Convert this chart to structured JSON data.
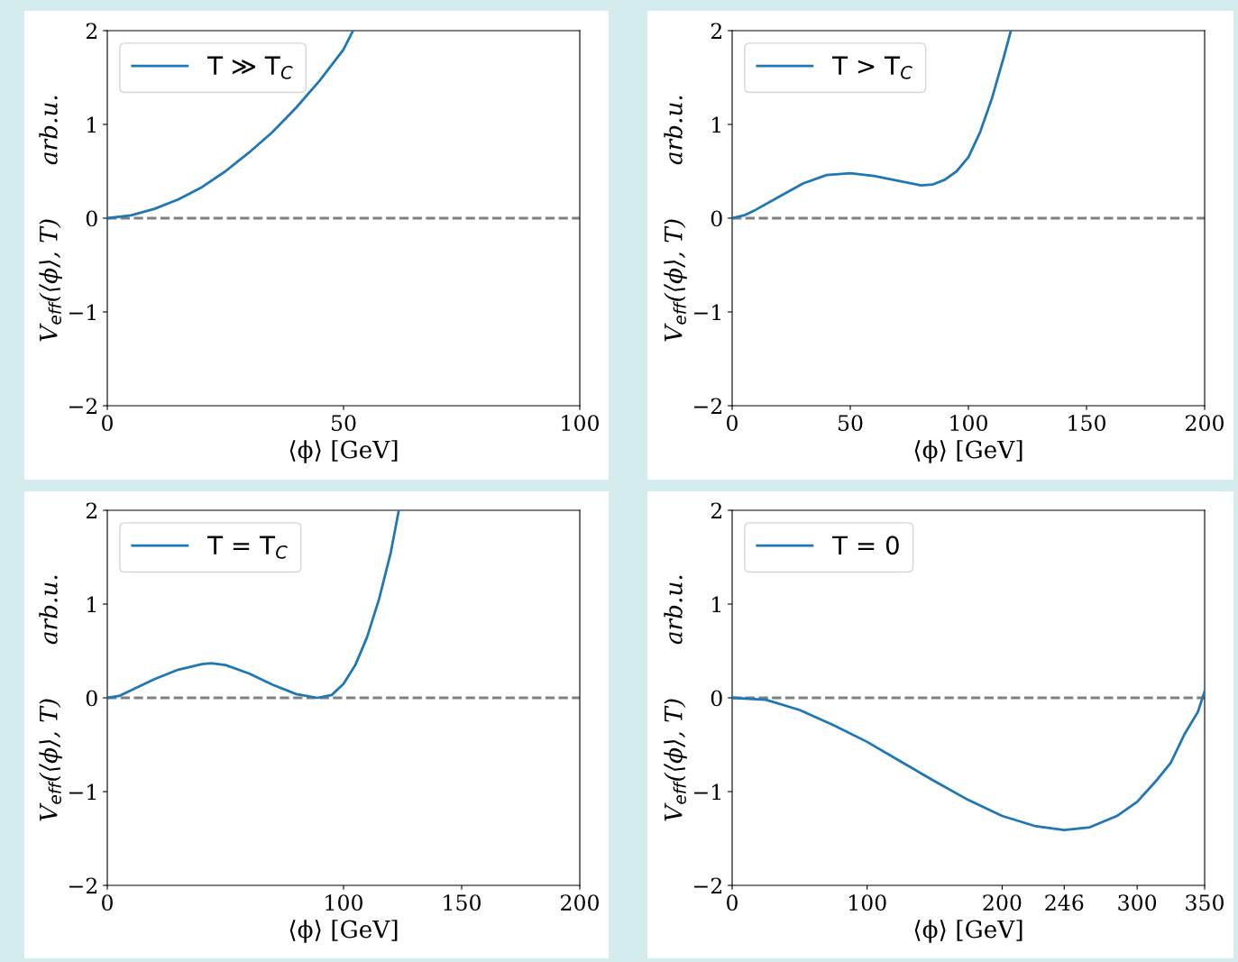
{
  "chart_data": [
    {
      "type": "line",
      "xlabel": "⟨ϕ⟩ [GeV]",
      "ylabel": "V$_{eff}$(⟨ϕ⟩, T)       arb.u.",
      "xlim": [
        0,
        100
      ],
      "ylim": [
        -2,
        2
      ],
      "xticks": [
        0,
        50,
        100
      ],
      "yticks": [
        -2,
        -1,
        0,
        1,
        2
      ],
      "grid": false,
      "legend": "top left",
      "marker": "none",
      "line_style": "solid",
      "series": [
        {
          "name": "T ≫ T$_{C}$",
          "color": "#1f77b4",
          "x": [
            0,
            5,
            10,
            15,
            20,
            25,
            30,
            35,
            40,
            45,
            50,
            52
          ],
          "values": [
            0,
            0.03,
            0.1,
            0.2,
            0.33,
            0.5,
            0.7,
            0.92,
            1.18,
            1.47,
            1.8,
            2.0
          ]
        }
      ],
      "ref_lines": [
        {
          "axis": "y",
          "value": 0,
          "color": "#808080",
          "line_style": "dashed"
        }
      ]
    },
    {
      "type": "line",
      "xlabel": "⟨ϕ⟩ [GeV]",
      "ylabel": "V$_{eff}$(⟨ϕ⟩, T)       arb.u.",
      "xlim": [
        0,
        200
      ],
      "ylim": [
        -2,
        2
      ],
      "xticks": [
        0,
        50,
        100,
        150,
        200
      ],
      "yticks": [
        -2,
        -1,
        0,
        1,
        2
      ],
      "grid": false,
      "legend": "top left",
      "marker": "none",
      "line_style": "solid",
      "series": [
        {
          "name": "T > T$_{C}$",
          "color": "#1f77b4",
          "x": [
            0,
            5,
            10,
            20,
            30,
            40,
            50,
            60,
            70,
            80,
            85,
            90,
            95,
            100,
            105,
            110,
            115,
            118
          ],
          "values": [
            0,
            0.03,
            0.09,
            0.23,
            0.37,
            0.46,
            0.48,
            0.45,
            0.4,
            0.35,
            0.36,
            0.41,
            0.5,
            0.65,
            0.92,
            1.28,
            1.72,
            2.0
          ]
        }
      ],
      "ref_lines": [
        {
          "axis": "y",
          "value": 0,
          "color": "#808080",
          "line_style": "dashed"
        }
      ]
    },
    {
      "type": "line",
      "xlabel": "⟨ϕ⟩ [GeV]",
      "ylabel": "V$_{eff}$(⟨ϕ⟩, T)       arb.u.",
      "xlim": [
        0,
        200
      ],
      "ylim": [
        -2,
        2
      ],
      "xticks": [
        0,
        100,
        150,
        200
      ],
      "yticks": [
        -2,
        -1,
        0,
        1,
        2
      ],
      "grid": false,
      "legend": "top left",
      "marker": "none",
      "line_style": "solid",
      "series": [
        {
          "name": "T = T$_{C}$",
          "color": "#1f77b4",
          "x": [
            0,
            5,
            10,
            20,
            30,
            40,
            44,
            50,
            60,
            70,
            80,
            89,
            95,
            100,
            105,
            110,
            115,
            120,
            123.4
          ],
          "values": [
            0,
            0.02,
            0.08,
            0.2,
            0.3,
            0.36,
            0.37,
            0.35,
            0.26,
            0.14,
            0.04,
            0,
            0.03,
            0.15,
            0.35,
            0.65,
            1.05,
            1.55,
            2.0
          ]
        }
      ],
      "ref_lines": [
        {
          "axis": "y",
          "value": 0,
          "color": "#808080",
          "line_style": "dashed"
        }
      ]
    },
    {
      "type": "line",
      "xlabel": "⟨ϕ⟩ [GeV]",
      "ylabel": "V$_{eff}$(⟨ϕ⟩, T)       arb.u.",
      "xlim": [
        0,
        350
      ],
      "ylim": [
        -2,
        2
      ],
      "xticks": [
        0,
        100,
        200,
        246,
        300,
        350
      ],
      "yticks": [
        -2,
        -1,
        0,
        1,
        2
      ],
      "grid": false,
      "legend": "top left",
      "marker": "none",
      "line_style": "solid",
      "series": [
        {
          "name": "T = 0",
          "color": "#1f77b4",
          "x": [
            0,
            25,
            50,
            75,
            100,
            125,
            150,
            175,
            200,
            225,
            246,
            265,
            285,
            300,
            315,
            325,
            335,
            345,
            350
          ],
          "values": [
            0,
            -0.02,
            -0.13,
            -0.29,
            -0.47,
            -0.68,
            -0.89,
            -1.09,
            -1.26,
            -1.37,
            -1.41,
            -1.38,
            -1.26,
            -1.11,
            -0.87,
            -0.69,
            -0.39,
            -0.15,
            0.07
          ]
        }
      ],
      "ref_lines": [
        {
          "axis": "y",
          "value": 0,
          "color": "#808080",
          "line_style": "dashed"
        }
      ]
    }
  ]
}
